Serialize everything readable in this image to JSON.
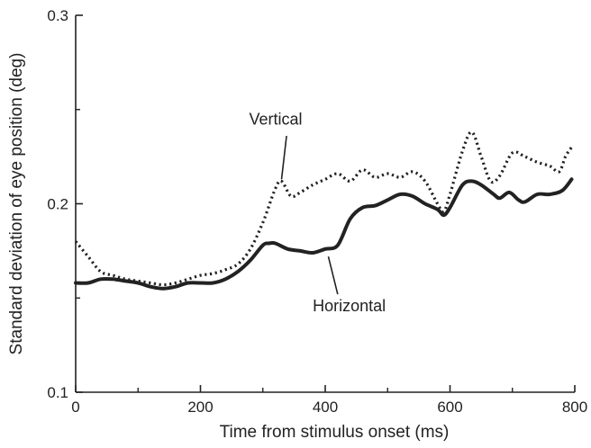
{
  "chart_data": {
    "type": "line",
    "xlabel": "Time from stimulus onset (ms)",
    "ylabel": "Standard deviation of eye position (deg)",
    "xlim": [
      0,
      800
    ],
    "ylim": [
      0.1,
      0.3
    ],
    "x_ticks": [
      "0",
      "200",
      "400",
      "600",
      "800"
    ],
    "y_ticks": [
      "0.1",
      "0.2",
      "0.3"
    ],
    "grid": false,
    "series": [
      {
        "name": "Horizontal",
        "style": "solid",
        "color": "#222222",
        "points": [
          [
            0,
            0.158
          ],
          [
            20,
            0.158
          ],
          [
            40,
            0.16
          ],
          [
            60,
            0.16
          ],
          [
            80,
            0.159
          ],
          [
            100,
            0.158
          ],
          [
            120,
            0.156
          ],
          [
            140,
            0.155
          ],
          [
            160,
            0.156
          ],
          [
            180,
            0.158
          ],
          [
            200,
            0.158
          ],
          [
            220,
            0.158
          ],
          [
            240,
            0.16
          ],
          [
            260,
            0.164
          ],
          [
            280,
            0.17
          ],
          [
            300,
            0.178
          ],
          [
            310,
            0.179
          ],
          [
            320,
            0.179
          ],
          [
            340,
            0.176
          ],
          [
            360,
            0.175
          ],
          [
            380,
            0.174
          ],
          [
            400,
            0.176
          ],
          [
            420,
            0.178
          ],
          [
            440,
            0.192
          ],
          [
            460,
            0.198
          ],
          [
            480,
            0.199
          ],
          [
            500,
            0.202
          ],
          [
            520,
            0.205
          ],
          [
            540,
            0.204
          ],
          [
            560,
            0.2
          ],
          [
            580,
            0.197
          ],
          [
            590,
            0.194
          ],
          [
            600,
            0.198
          ],
          [
            620,
            0.21
          ],
          [
            635,
            0.212
          ],
          [
            650,
            0.21
          ],
          [
            670,
            0.205
          ],
          [
            680,
            0.203
          ],
          [
            695,
            0.206
          ],
          [
            710,
            0.202
          ],
          [
            720,
            0.201
          ],
          [
            740,
            0.205
          ],
          [
            760,
            0.205
          ],
          [
            780,
            0.207
          ],
          [
            795,
            0.213
          ]
        ]
      },
      {
        "name": "Vertical",
        "style": "dotted",
        "color": "#222222",
        "points": [
          [
            0,
            0.18
          ],
          [
            20,
            0.172
          ],
          [
            40,
            0.164
          ],
          [
            60,
            0.162
          ],
          [
            80,
            0.16
          ],
          [
            100,
            0.159
          ],
          [
            120,
            0.158
          ],
          [
            140,
            0.157
          ],
          [
            160,
            0.158
          ],
          [
            180,
            0.16
          ],
          [
            200,
            0.162
          ],
          [
            220,
            0.163
          ],
          [
            240,
            0.165
          ],
          [
            260,
            0.168
          ],
          [
            280,
            0.176
          ],
          [
            300,
            0.19
          ],
          [
            320,
            0.208
          ],
          [
            330,
            0.212
          ],
          [
            345,
            0.204
          ],
          [
            360,
            0.206
          ],
          [
            380,
            0.21
          ],
          [
            400,
            0.213
          ],
          [
            420,
            0.216
          ],
          [
            440,
            0.212
          ],
          [
            460,
            0.218
          ],
          [
            480,
            0.214
          ],
          [
            500,
            0.216
          ],
          [
            520,
            0.214
          ],
          [
            540,
            0.217
          ],
          [
            560,
            0.212
          ],
          [
            580,
            0.2
          ],
          [
            590,
            0.196
          ],
          [
            600,
            0.205
          ],
          [
            620,
            0.228
          ],
          [
            635,
            0.238
          ],
          [
            650,
            0.225
          ],
          [
            665,
            0.212
          ],
          [
            680,
            0.215
          ],
          [
            700,
            0.227
          ],
          [
            720,
            0.225
          ],
          [
            740,
            0.222
          ],
          [
            760,
            0.22
          ],
          [
            775,
            0.217
          ],
          [
            785,
            0.225
          ],
          [
            795,
            0.23
          ]
        ]
      }
    ],
    "annotations": [
      {
        "text": "Vertical",
        "series": "Vertical"
      },
      {
        "text": "Horizontal",
        "series": "Horizontal"
      }
    ]
  }
}
